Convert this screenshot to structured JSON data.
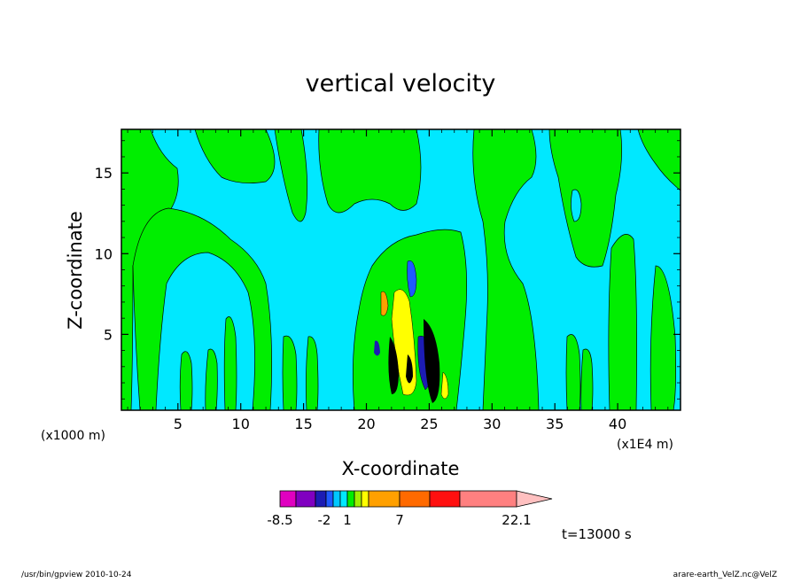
{
  "chart_data": {
    "type": "heatmap",
    "title": "vertical velocity",
    "xlabel": "X-coordinate",
    "ylabel": "Z-coordinate",
    "x_unit": "(x1000 m)",
    "x_scale_note": "(x1E4 m)",
    "xlim": [
      0.5,
      45
    ],
    "ylim": [
      0.3,
      17.7
    ],
    "x_ticks": [
      5,
      10,
      15,
      20,
      25,
      30,
      35,
      40
    ],
    "y_ticks": [
      5,
      10,
      15
    ],
    "time_label": "t=13000 s",
    "colorbar": {
      "colors": [
        "#e000c0",
        "#8000c0",
        "#1c1cb4",
        "#1e5aff",
        "#00c8ff",
        "#00e8ff",
        "#00ee00",
        "#a0f000",
        "#ffff00",
        "#ffa000",
        "#ff6a00",
        "#ff1010",
        "#ff8080",
        "#ffc0c0"
      ],
      "tick_labels": [
        "-8.5",
        "-2",
        "1",
        "7",
        "22.1"
      ]
    },
    "fields": {
      "background_color": "#00e8ff",
      "green_color": "#00ee00",
      "note": ""
    }
  },
  "footer": {
    "left": "/usr/bin/gpview   2010-10-24",
    "right": "arare-earth_VelZ.nc@VelZ"
  }
}
